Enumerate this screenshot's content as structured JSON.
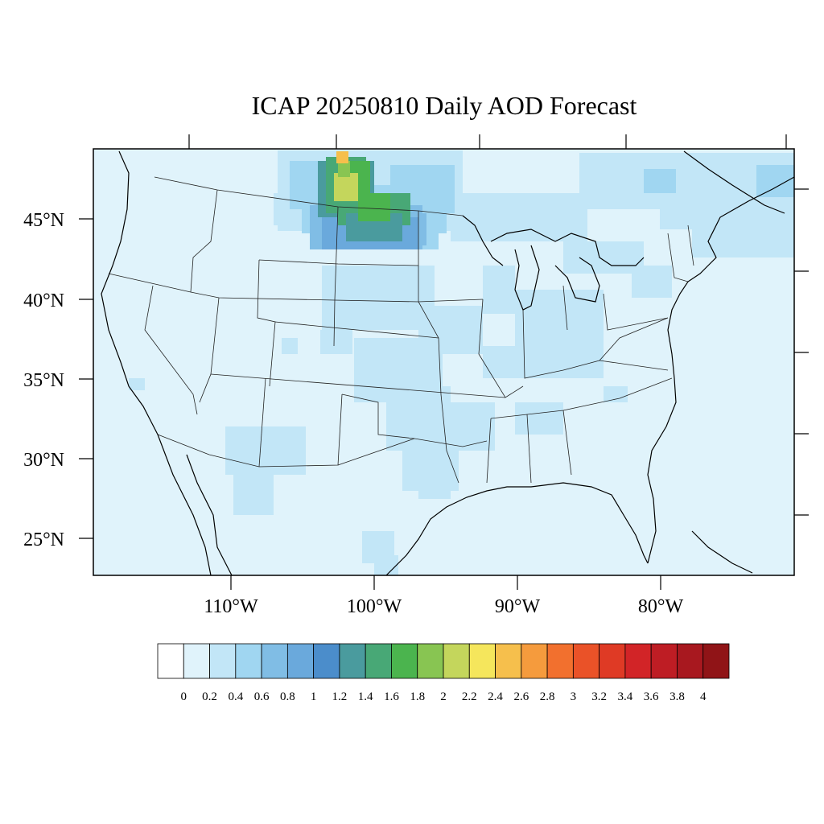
{
  "title": "ICAP 20250810 Daily AOD Forecast",
  "map": {
    "lat_labels": [
      "45°N",
      "40°N",
      "35°N",
      "30°N",
      "25°N"
    ],
    "lon_labels": [
      "110°W",
      "100°W",
      "90°W",
      "80°W"
    ]
  },
  "colorbar": {
    "labels": [
      "0",
      "0.2",
      "0.4",
      "0.6",
      "0.8",
      "1",
      "1.2",
      "1.4",
      "1.6",
      "1.8",
      "2",
      "2.2",
      "2.4",
      "2.6",
      "2.8",
      "3",
      "3.2",
      "3.4",
      "3.6",
      "3.8",
      "4"
    ],
    "colors": [
      "#ffffff",
      "#e0f3fb",
      "#c2e6f7",
      "#a0d6f1",
      "#80bde5",
      "#6aa9dc",
      "#4b8dcb",
      "#4a9b9e",
      "#48a876",
      "#4bb44e",
      "#88c552",
      "#c4d65c",
      "#f5e65c",
      "#f6bf4c",
      "#f59b3d",
      "#f2702e",
      "#ea5228",
      "#df3a25",
      "#d22427",
      "#be1d24",
      "#a8181f",
      "#901417"
    ]
  },
  "chart_data": {
    "type": "heatmap",
    "title": "ICAP 20250810 Daily AOD Forecast",
    "xlabel": "",
    "ylabel": "",
    "x_ticks": [
      "110°W",
      "100°W",
      "90°W",
      "80°W"
    ],
    "y_ticks": [
      "45°N",
      "40°N",
      "35°N",
      "30°N",
      "25°N"
    ],
    "colorbar_ticks": [
      0,
      0.2,
      0.4,
      0.6,
      0.8,
      1,
      1.2,
      1.4,
      1.6,
      1.8,
      2,
      2.2,
      2.4,
      2.6,
      2.8,
      3,
      3.2,
      3.4,
      3.6,
      3.8,
      4
    ],
    "plume_max_aod": 2.6,
    "background_aod": 0.1
  }
}
